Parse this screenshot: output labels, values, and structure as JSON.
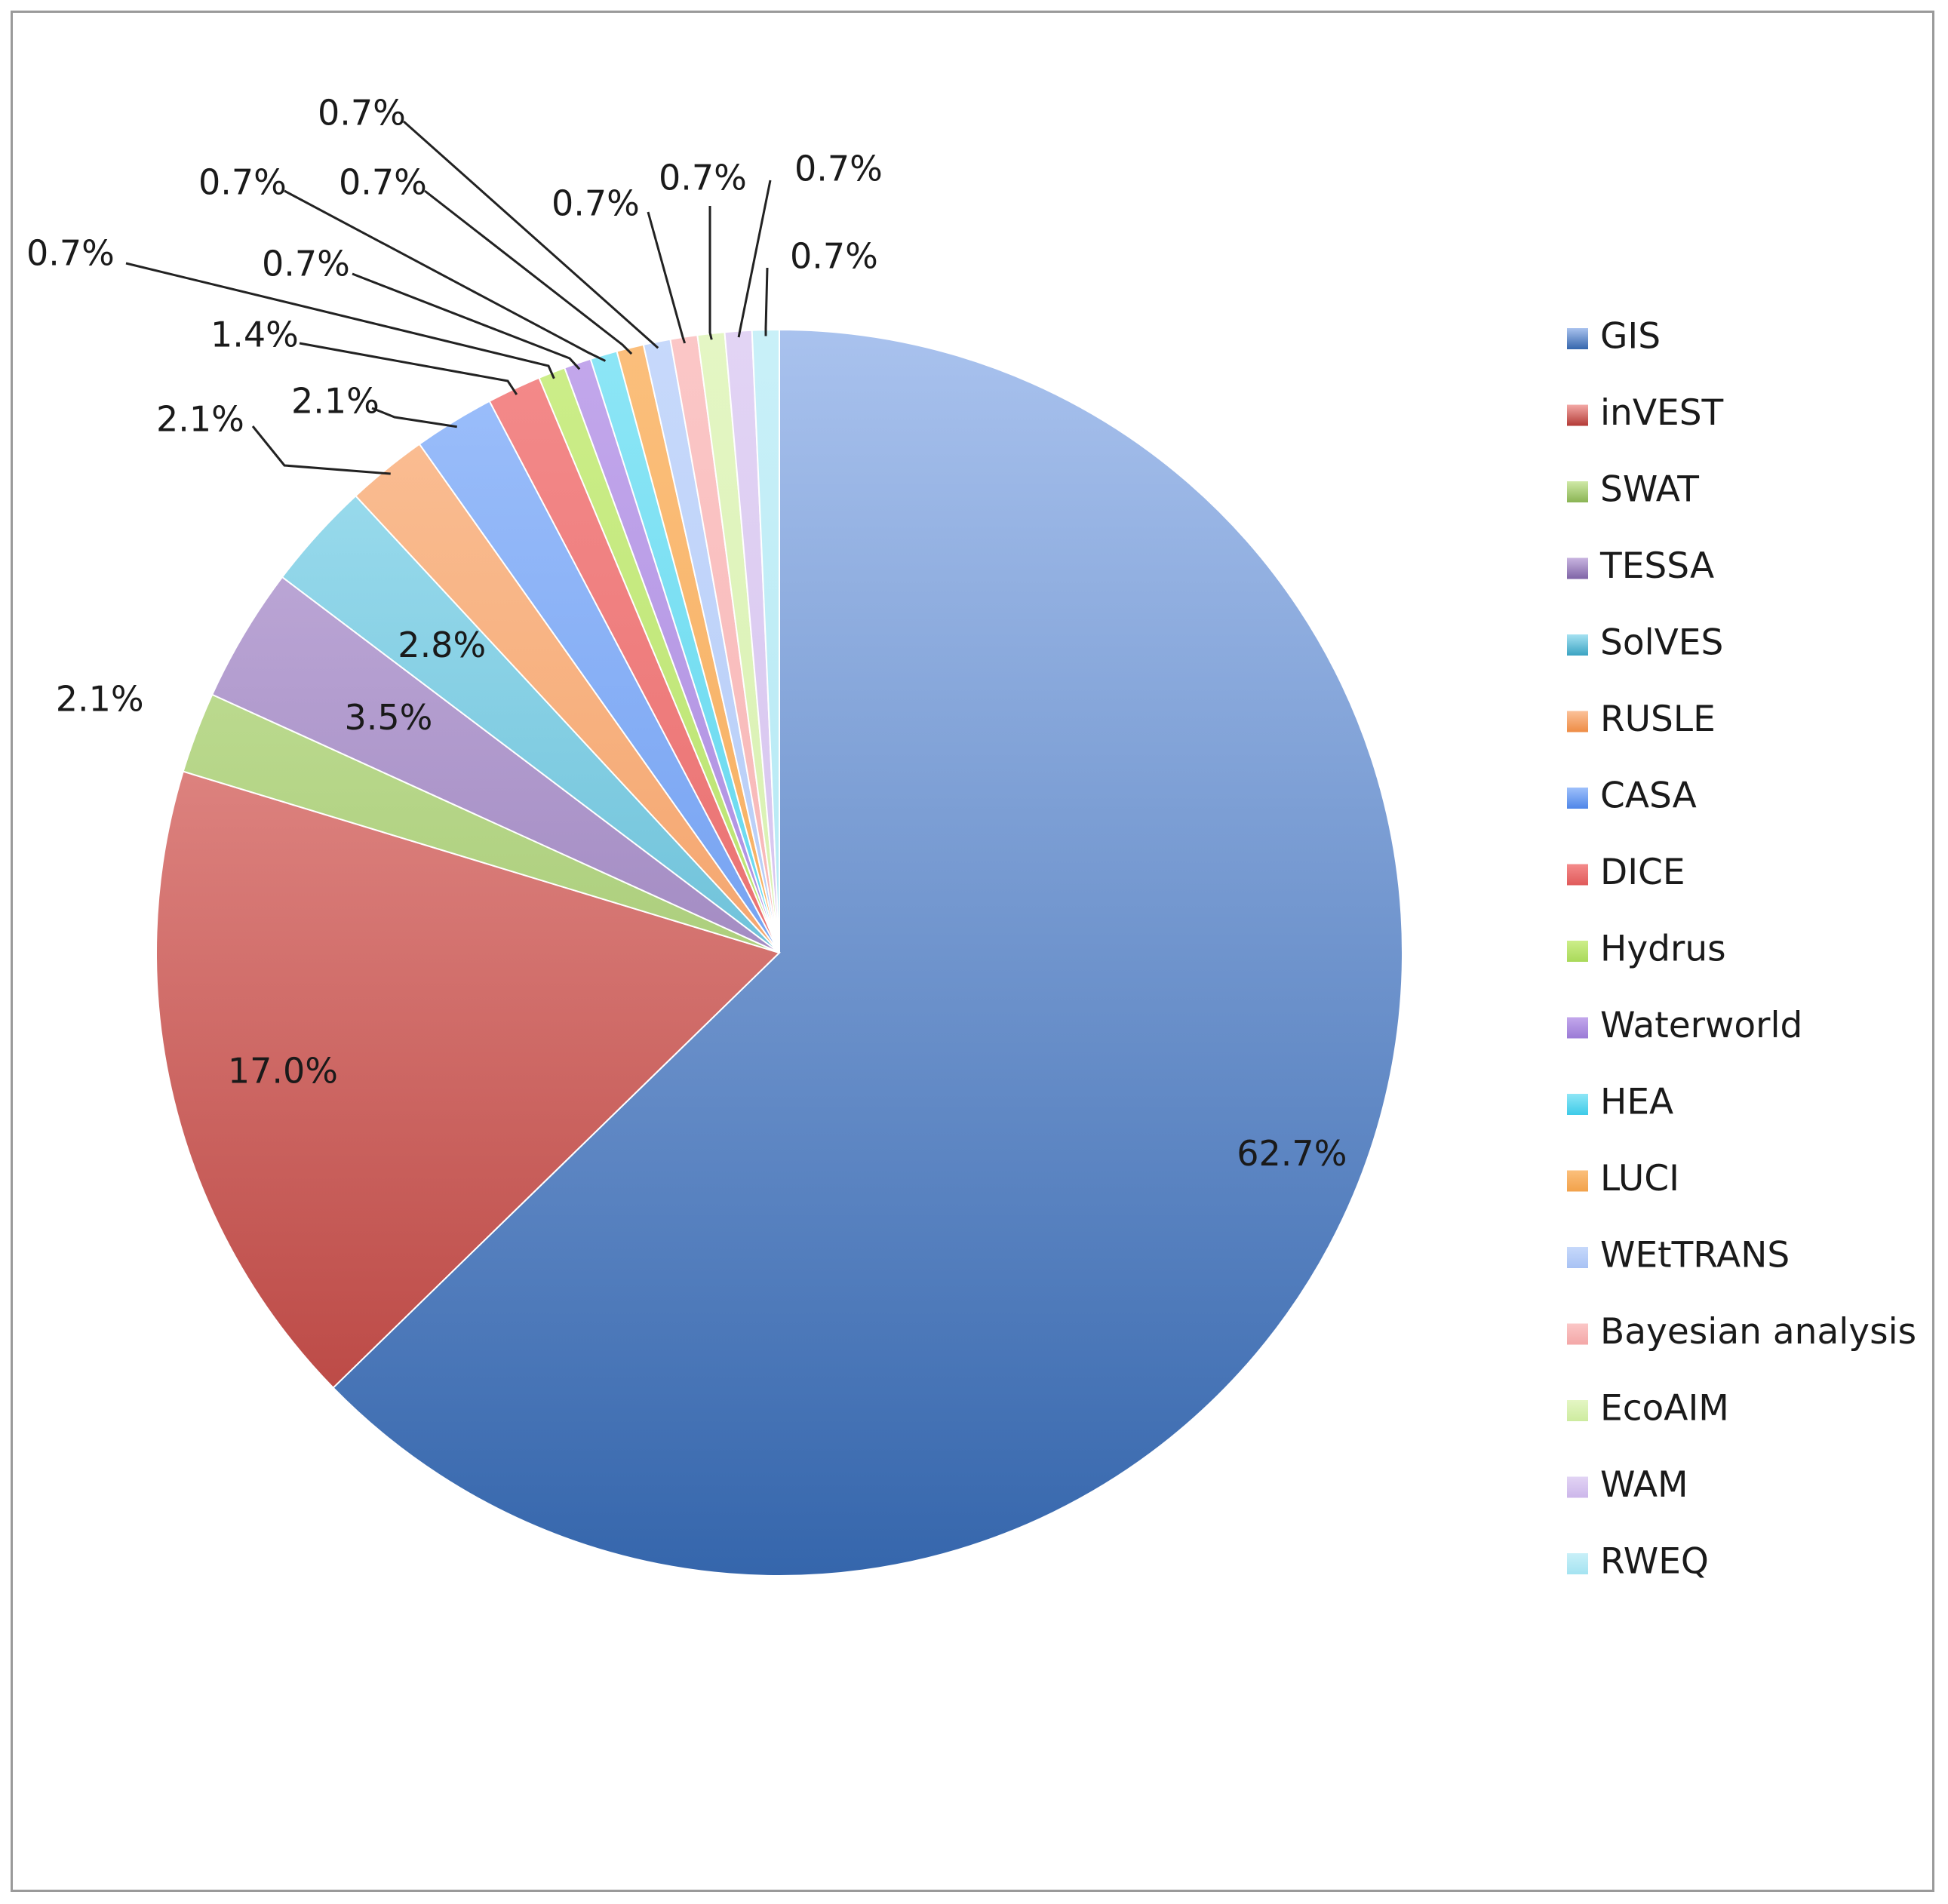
{
  "chart_data": {
    "type": "pie",
    "title": "",
    "legend_position": "right",
    "start_angle_deg": 0,
    "direction": "clockwise",
    "labels_shown": "percent",
    "slices": [
      {
        "name": "GIS",
        "value": 62.7,
        "label": "62.7%",
        "color_light": "#a9c2ee",
        "color_dark": "#3566ac",
        "label_mode": "inside"
      },
      {
        "name": "inVEST",
        "value": 17.0,
        "label": "17.0%",
        "color_light": "#f3a9a6",
        "color_dark": "#b33a36",
        "label_mode": "inside"
      },
      {
        "name": "SWAT",
        "value": 2.1,
        "label": "2.1%",
        "color_light": "#cfe9a6",
        "color_dark": "#8ab454",
        "label_mode": "outside"
      },
      {
        "name": "TESSA",
        "value": 3.5,
        "label": "3.5%",
        "color_light": "#c9b5e0",
        "color_dark": "#7e63a6",
        "label_mode": "inside"
      },
      {
        "name": "SolVES",
        "value": 2.8,
        "label": "2.8%",
        "color_light": "#a6e2f2",
        "color_dark": "#3aa3c2",
        "label_mode": "inside"
      },
      {
        "name": "RUSLE",
        "value": 2.1,
        "label": "2.1%",
        "color_light": "#fbc199",
        "color_dark": "#ee8c45",
        "label_mode": "leader"
      },
      {
        "name": "CASA",
        "value": 2.1,
        "label": "2.1%",
        "color_light": "#9ec0fb",
        "color_dark": "#4f86e8",
        "label_mode": "leader"
      },
      {
        "name": "DICE",
        "value": 1.4,
        "label": "1.4%",
        "color_light": "#f48b8b",
        "color_dark": "#e05a5a",
        "label_mode": "leader"
      },
      {
        "name": "Hydrus",
        "value": 0.7,
        "label": "0.7%",
        "color_light": "#cdee8a",
        "color_dark": "#a9d95a",
        "label_mode": "leader"
      },
      {
        "name": "Waterworld",
        "value": 0.7,
        "label": "0.7%",
        "color_light": "#c3a8ec",
        "color_dark": "#9b7ad6",
        "label_mode": "leader"
      },
      {
        "name": "HEA",
        "value": 0.7,
        "label": "0.7%",
        "color_light": "#8ee6f6",
        "color_dark": "#3ecbe8",
        "label_mode": "leader"
      },
      {
        "name": "LUCI",
        "value": 0.7,
        "label": "0.7%",
        "color_light": "#fbbf7c",
        "color_dark": "#f2a24a",
        "label_mode": "leader"
      },
      {
        "name": "WEtTRANS",
        "value": 0.7,
        "label": "0.7%",
        "color_light": "#c7d9fb",
        "color_dark": "#a8c2f4",
        "label_mode": "leader"
      },
      {
        "name": "Bayesian analysis",
        "value": 0.7,
        "label": "0.7%",
        "color_light": "#fbc7c7",
        "color_dark": "#f3a7a7",
        "label_mode": "leader"
      },
      {
        "name": "EcoAIM",
        "value": 0.7,
        "label": "0.7%",
        "color_light": "#e4f6c4",
        "color_dark": "#cdeb9f",
        "label_mode": "leader"
      },
      {
        "name": "WAM",
        "value": 0.7,
        "label": "0.7%",
        "color_light": "#e2d4f4",
        "color_dark": "#ccb6ea",
        "label_mode": "leader"
      },
      {
        "name": "RWEQ",
        "value": 0.7,
        "label": "0.7%",
        "color_light": "#c9f0f8",
        "color_dark": "#a4e3f1",
        "label_mode": "leader"
      }
    ]
  }
}
